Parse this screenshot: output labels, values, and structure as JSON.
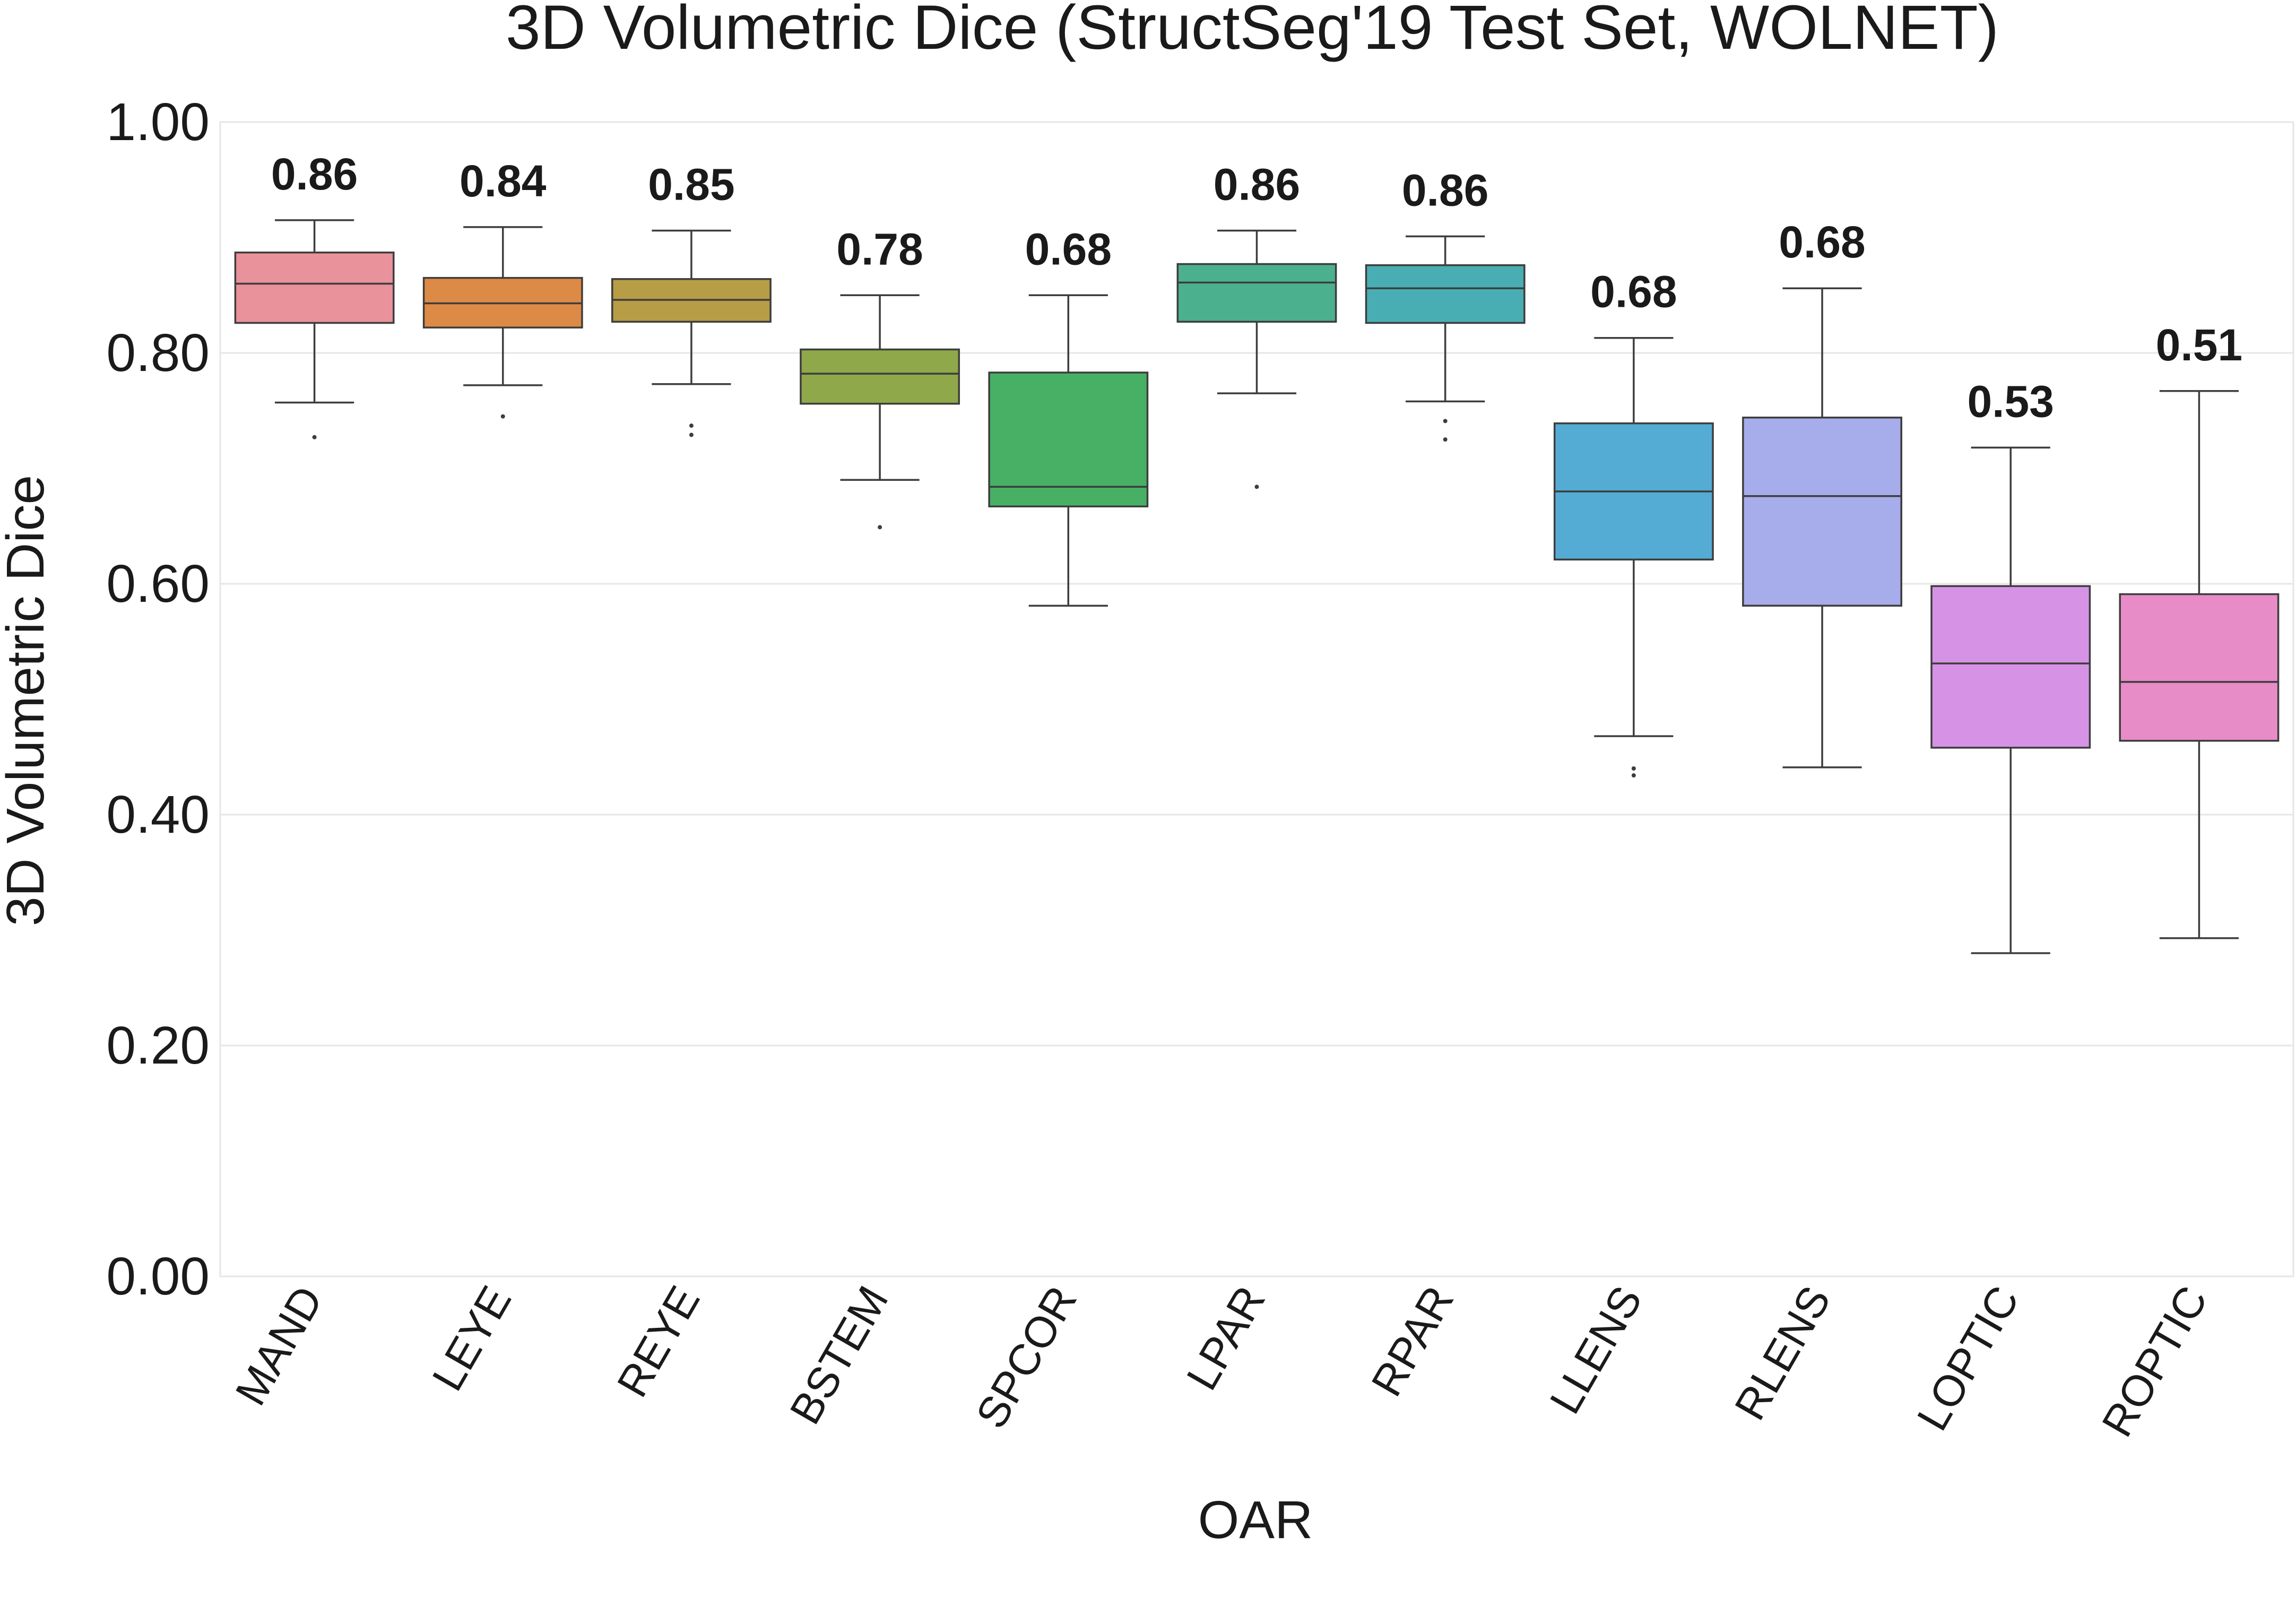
{
  "chart_data": {
    "type": "box",
    "title": "3D Volumetric Dice (StructSeg'19 Test Set, WOLNET)",
    "xlabel": "OAR",
    "ylabel": "3D Volumetric Dice",
    "ylim": [
      0.0,
      1.0
    ],
    "yticks": [
      "0.00",
      "0.20",
      "0.40",
      "0.60",
      "0.80",
      "1.00"
    ],
    "grid": true,
    "categories": [
      "MAND",
      "LEYE",
      "REYE",
      "BSTEM",
      "SPCOR",
      "LPAR",
      "RPAR",
      "LLENS",
      "RLENS",
      "LOPTIC",
      "ROPTIC"
    ],
    "median_labels": [
      "0.86",
      "0.84",
      "0.85",
      "0.78",
      "0.68",
      "0.86",
      "0.86",
      "0.68",
      "0.68",
      "0.53",
      "0.51"
    ],
    "boxes": [
      {
        "whisker_low": 0.757,
        "q1": 0.826,
        "median": 0.86,
        "q3": 0.887,
        "whisker_high": 0.915,
        "outliers": [
          0.727
        ],
        "color": "#e9929b"
      },
      {
        "whisker_low": 0.772,
        "q1": 0.822,
        "median": 0.843,
        "q3": 0.865,
        "whisker_high": 0.909,
        "outliers": [
          0.745
        ],
        "color": "#de8a47"
      },
      {
        "whisker_low": 0.773,
        "q1": 0.827,
        "median": 0.846,
        "q3": 0.864,
        "whisker_high": 0.906,
        "outliers": [
          0.737,
          0.729
        ],
        "color": "#b79d46"
      },
      {
        "whisker_low": 0.69,
        "q1": 0.756,
        "median": 0.782,
        "q3": 0.803,
        "whisker_high": 0.85,
        "outliers": [
          0.649
        ],
        "color": "#8fa84a"
      },
      {
        "whisker_low": 0.581,
        "q1": 0.667,
        "median": 0.684,
        "q3": 0.783,
        "whisker_high": 0.85,
        "outliers": [],
        "color": "#48b065"
      },
      {
        "whisker_low": 0.765,
        "q1": 0.827,
        "median": 0.861,
        "q3": 0.877,
        "whisker_high": 0.906,
        "outliers": [
          0.684
        ],
        "color": "#4bb08e"
      },
      {
        "whisker_low": 0.758,
        "q1": 0.826,
        "median": 0.856,
        "q3": 0.876,
        "whisker_high": 0.901,
        "outliers": [
          0.741,
          0.725
        ],
        "color": "#49aeb4"
      },
      {
        "whisker_low": 0.468,
        "q1": 0.621,
        "median": 0.68,
        "q3": 0.739,
        "whisker_high": 0.813,
        "outliers": [
          0.44,
          0.434
        ],
        "color": "#54acd4"
      },
      {
        "whisker_low": 0.441,
        "q1": 0.581,
        "median": 0.676,
        "q3": 0.744,
        "whisker_high": 0.856,
        "outliers": [],
        "color": "#a7aceb"
      },
      {
        "whisker_low": 0.28,
        "q1": 0.458,
        "median": 0.531,
        "q3": 0.598,
        "whisker_high": 0.718,
        "outliers": [],
        "color": "#d693e6"
      },
      {
        "whisker_low": 0.293,
        "q1": 0.464,
        "median": 0.515,
        "q3": 0.591,
        "whisker_high": 0.767,
        "outliers": [],
        "color": "#e88cc8"
      }
    ]
  }
}
